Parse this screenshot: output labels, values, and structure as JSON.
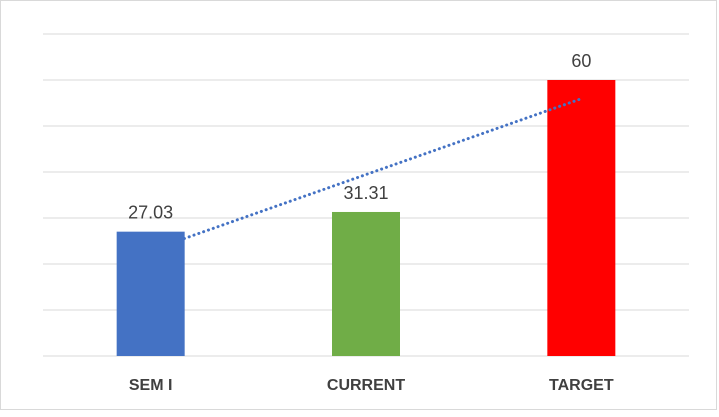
{
  "chart_data": {
    "type": "bar",
    "title": "",
    "xlabel": "",
    "ylabel": "",
    "categories": [
      "SEM I",
      "CURRENT",
      "TARGET"
    ],
    "values": [
      27.03,
      31.31,
      60
    ],
    "data_labels": [
      "27.03",
      "31.31",
      "60"
    ],
    "bar_colors": [
      "#4472c4",
      "#70ad47",
      "#ff0000"
    ],
    "ylim": [
      0,
      70
    ],
    "grid_step": 10,
    "grid": true,
    "legend": "none",
    "trendline": {
      "type": "linear",
      "style": "dotted",
      "color": "#4472c4"
    }
  }
}
